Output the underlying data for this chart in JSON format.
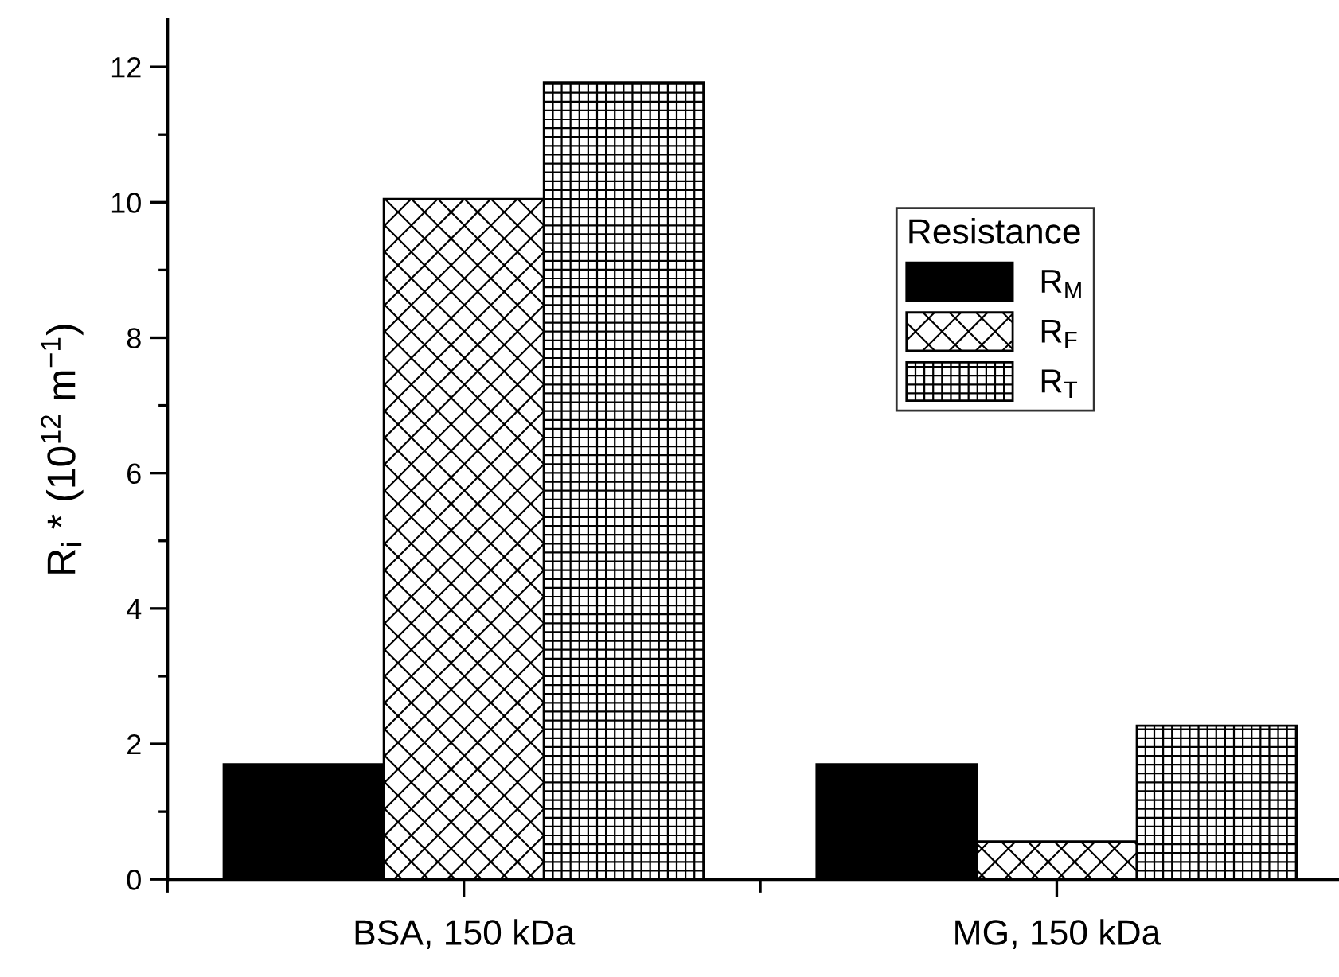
{
  "chart_data": {
    "type": "bar",
    "ylabel": "R$_{i}$ * (10$^{12}$ m$^{−1}$)",
    "legend_title": "Resistance",
    "categories": [
      "BSA, 150 kDa",
      "MG, 150 kDa"
    ],
    "series": [
      {
        "name": "R$_{M}$",
        "color": "#000000",
        "values": [
          1.7,
          1.7
        ]
      },
      {
        "name": "R$_{F}$",
        "color": "#000000",
        "values": [
          10.05,
          0.56
        ]
      },
      {
        "name": "R$_{T}$",
        "color": "#000000",
        "values": [
          11.77,
          2.27
        ]
      }
    ],
    "ylim": [
      0,
      12.7
    ],
    "yticks": [
      0,
      {
        "value": 1,
        "label": null
      },
      2,
      {
        "value": 3,
        "label": null
      },
      4,
      {
        "value": 5,
        "label": null
      },
      6,
      {
        "value": 7,
        "label": null
      },
      8,
      {
        "value": 9,
        "label": null
      },
      10,
      {
        "value": 11,
        "label": null
      },
      12
    ],
    "legend": "top right",
    "grid": false
  }
}
